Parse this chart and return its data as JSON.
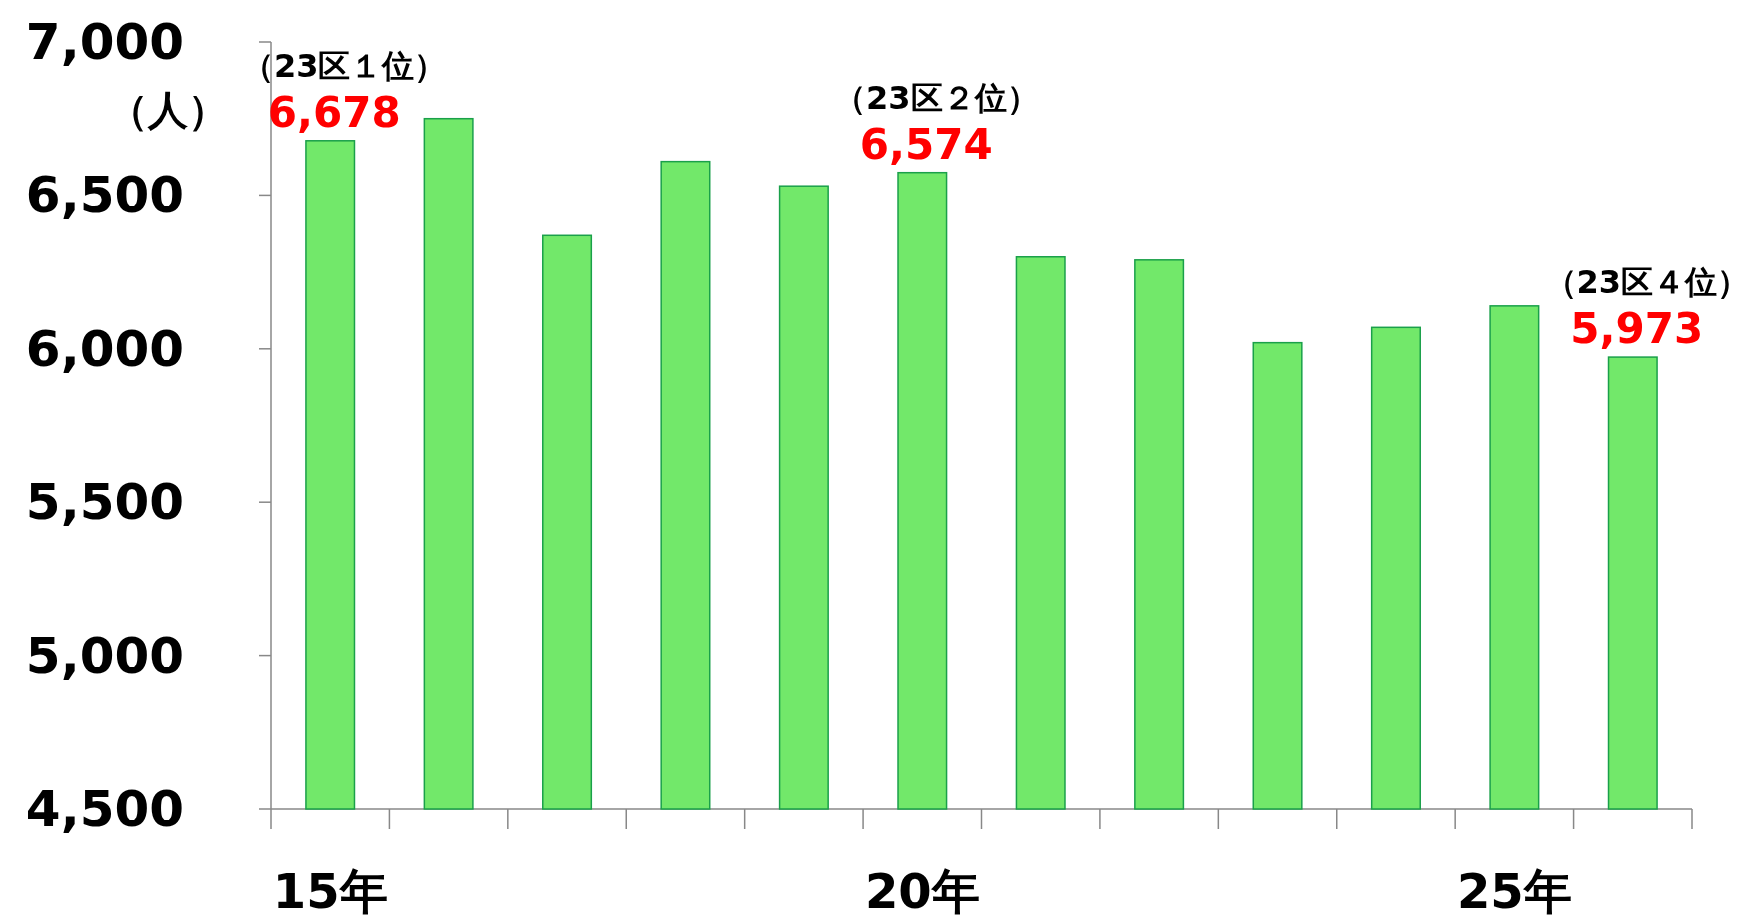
{
  "chart_data": {
    "type": "bar",
    "ylabel": "（人）",
    "categories": [
      "15年",
      null,
      null,
      null,
      null,
      "20年",
      null,
      null,
      null,
      null,
      "25年",
      null
    ],
    "values": [
      6678,
      6750,
      6370,
      6610,
      6530,
      6574,
      6300,
      6290,
      6020,
      6070,
      6140,
      5973
    ],
    "value_labels": [
      "6,678",
      null,
      null,
      null,
      null,
      "6,574",
      null,
      null,
      null,
      null,
      null,
      "5,973"
    ],
    "annotations": [
      "（23区１位）",
      "（23区２位）",
      "（23区４位）"
    ],
    "color": "#72e86a",
    "ylim": [
      4500,
      7000
    ],
    "yticks": [
      {
        "value": 4500,
        "label": "4,500"
      },
      {
        "value": 5000,
        "label": "5,000"
      },
      {
        "value": 5500,
        "label": "5,500"
      },
      {
        "value": 6000,
        "label": "6,000"
      },
      {
        "value": 6500,
        "label": "6,500"
      },
      {
        "value": 7000,
        "label": "7,000"
      }
    ],
    "grid": false
  }
}
